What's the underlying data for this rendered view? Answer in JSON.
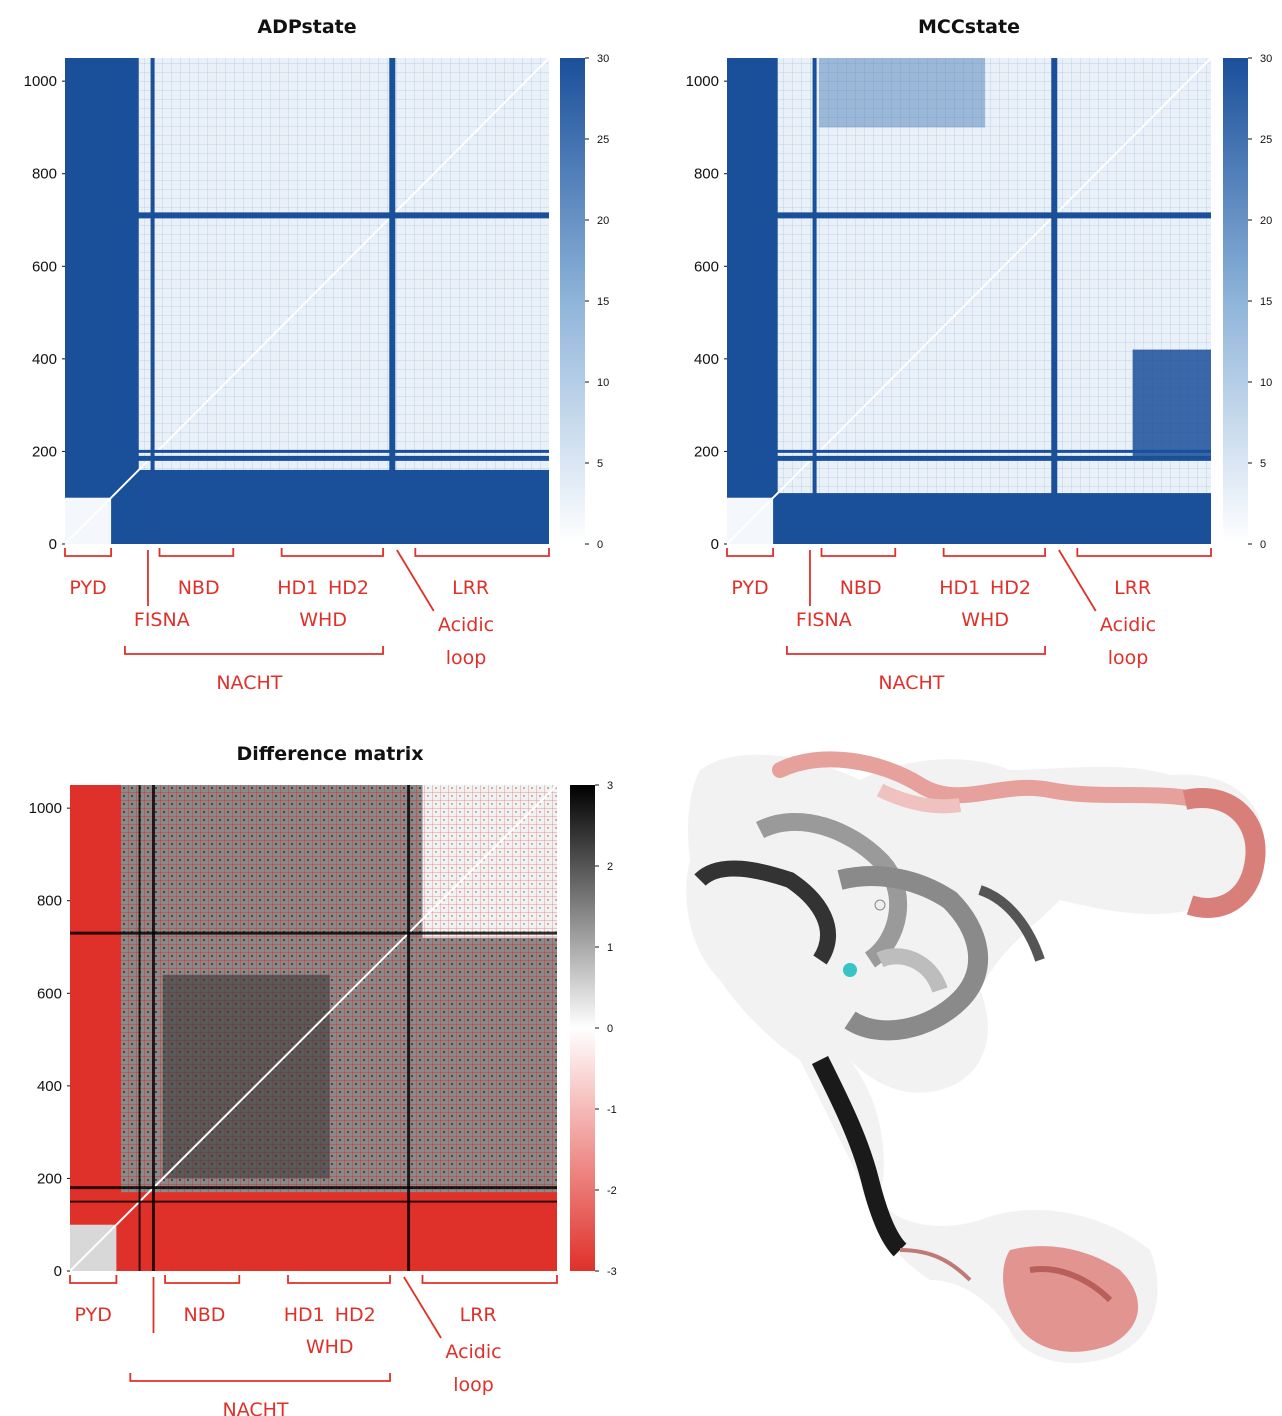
{
  "chart_data": [
    {
      "type": "heatmap",
      "title": "ADPstate",
      "xlim": [
        0,
        1050
      ],
      "ylim": [
        0,
        1050
      ],
      "yticks": [
        0,
        200,
        400,
        600,
        800,
        1000
      ],
      "colorbar": {
        "ticks": [
          0,
          5,
          10,
          15,
          20,
          25,
          30
        ],
        "range": [
          0,
          30
        ],
        "colors": [
          "#ffffff",
          "#1a4f9a"
        ]
      },
      "domain_labels": [
        "PYD",
        "NBD",
        "HD1",
        "HD2",
        "LRR",
        "FISNA",
        "WHD",
        "Acidic",
        "loop",
        "NACHT"
      ]
    },
    {
      "type": "heatmap",
      "title": "MCCstate",
      "xlim": [
        0,
        1050
      ],
      "ylim": [
        0,
        1050
      ],
      "yticks": [
        0,
        200,
        400,
        600,
        800,
        1000
      ],
      "colorbar": {
        "ticks": [
          0,
          5,
          10,
          15,
          20,
          25,
          30
        ],
        "range": [
          0,
          30
        ],
        "colors": [
          "#ffffff",
          "#1a4f9a"
        ]
      },
      "domain_labels": [
        "PYD",
        "NBD",
        "HD1",
        "HD2",
        "LRR",
        "FISNA",
        "WHD",
        "Acidic",
        "loop",
        "NACHT"
      ]
    },
    {
      "type": "heatmap",
      "title": "Difference matrix",
      "xlim": [
        0,
        1050
      ],
      "ylim": [
        0,
        1050
      ],
      "yticks": [
        0,
        200,
        400,
        600,
        800,
        1000
      ],
      "colorbar": {
        "ticks": [
          -3,
          -2,
          -1,
          0,
          1,
          2,
          3
        ],
        "range": [
          -3,
          3
        ],
        "colors": [
          "#e0302a",
          "#ffffff",
          "#000000"
        ]
      },
      "domain_labels": [
        "PYD",
        "NBD",
        "HD1",
        "HD2",
        "LRR",
        "WHD",
        "Acidic",
        "loop",
        "NACHT"
      ]
    }
  ],
  "colors": {
    "domain_label": "#e0302a",
    "blue": "#1a4f9a",
    "red": "#e0302a",
    "black": "#000000",
    "pink_structure": "#e08a86",
    "gray_structure": "#555555"
  },
  "image": {
    "name": "protein-structure-cartoon"
  }
}
